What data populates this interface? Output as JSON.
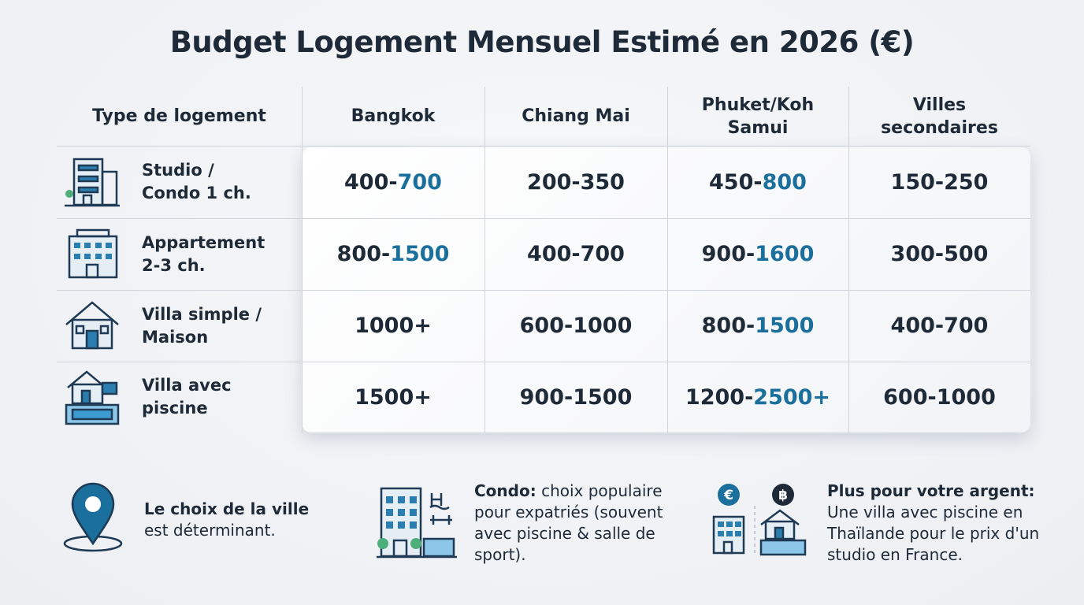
{
  "title": "Budget Logement Mensuel Estimé en 2026 (€)",
  "table": {
    "header": [
      [
        "Type de logement"
      ],
      [
        "Bangkok"
      ],
      [
        "Chiang Mai"
      ],
      [
        "Phuket/Koh",
        "Samui"
      ],
      [
        "Villes",
        "secondaires"
      ]
    ],
    "rows": [
      {
        "label": [
          "Studio /",
          "Condo 1 ch."
        ],
        "cells": [
          [
            "400-",
            "700"
          ],
          [
            "200-350"
          ],
          [
            "450-",
            "800"
          ],
          [
            "150-250"
          ]
        ]
      },
      {
        "label": [
          "Appartement",
          "2-3 ch."
        ],
        "cells": [
          [
            "800-",
            "1500"
          ],
          [
            "400-700"
          ],
          [
            "900-",
            "1600"
          ],
          [
            "300-500"
          ]
        ]
      },
      {
        "label": [
          "Villa simple /",
          "Maison"
        ],
        "cells": [
          [
            "1000+"
          ],
          [
            "600-1000"
          ],
          [
            "800-",
            "1500"
          ],
          [
            "400-700"
          ]
        ]
      },
      {
        "label": [
          "Villa avec",
          "piscine"
        ],
        "cells": [
          [
            "1500+"
          ],
          [
            "900-1500"
          ],
          [
            "1200-",
            "2500+"
          ],
          [
            "600-1000"
          ]
        ]
      }
    ]
  },
  "notes": [
    {
      "bold": "Le choix de la ville",
      "text": "est déterminant."
    },
    {
      "bold": "Condo:",
      "text": "choix populaire pour expatriés (souvent avec piscine & salle de sport)."
    },
    {
      "bold": "Plus pour votre argent:",
      "text": "Une villa avec piscine en Thaïlande pour le prix d'un studio en France.",
      "symbols": [
        "€",
        "฿"
      ]
    }
  ]
}
